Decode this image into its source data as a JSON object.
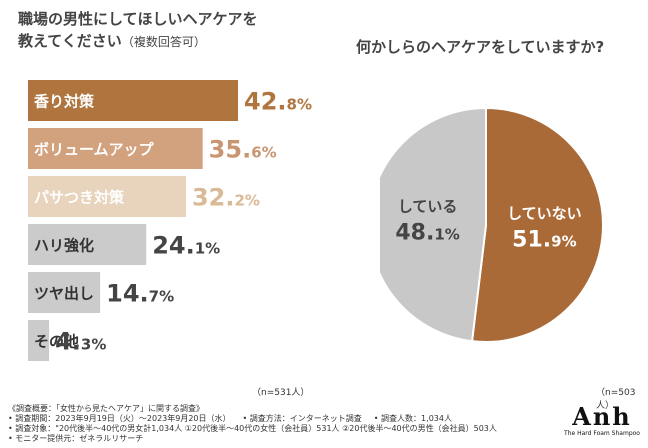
{
  "chart_data": [
    {
      "type": "bar",
      "orientation": "horizontal",
      "title_line1": "職場の男性にしてほしいヘアケアを",
      "title_line2": "教えてください",
      "title_note": "（複数回答可）",
      "categories": [
        "香り対策",
        "ボリュームアップ",
        "パサつき対策",
        "ハリ強化",
        "ツヤ出し",
        "その他"
      ],
      "values": [
        42.8,
        35.6,
        32.2,
        24.1,
        14.7,
        4.3
      ],
      "colors": [
        "#B0753F",
        "#D2A27E",
        "#E8D3BC",
        "#CBCBCB",
        "#CBCBCB",
        "#CBCBCB"
      ],
      "label_colors": [
        "#ffffff",
        "#ffffff",
        "#ffffff",
        "#333333",
        "#333333",
        "#333333"
      ],
      "value_colors": [
        "#B0753F",
        "#C99570",
        "#D9B996",
        "#444444",
        "#444444",
        "#444444"
      ],
      "xlim": [
        0,
        42.8
      ],
      "sample_note": "（n=531人）"
    },
    {
      "type": "pie",
      "title": "何かしらのヘアケアをしていますか?",
      "labels": [
        "していない",
        "している"
      ],
      "values": [
        51.9,
        48.1
      ],
      "colors": [
        "#A96A37",
        "#C8C8C8"
      ],
      "sample_note": "（n=503人）"
    }
  ],
  "footer": {
    "line1": "《調査概要：「女性から見たヘアケア」に関する調査》",
    "line2a": "• 調査期間：2023年9月19日（火）〜2023年9月20日（水）",
    "line2b": "• 調査方法：インターネット調査",
    "line2c": "• 調査人数：1,034人",
    "line3": "• 調査対象：\"20代後半〜40代の男女計1,034人 ①20代後半〜40代の女性（会社員）531人 ②20代後半〜40代の男性（会社員）503人",
    "line4": "• モニター提供元：ゼネラルリサーチ"
  },
  "logo": {
    "name": "Anh",
    "tagline": "The Hard Foam Shampoo"
  }
}
